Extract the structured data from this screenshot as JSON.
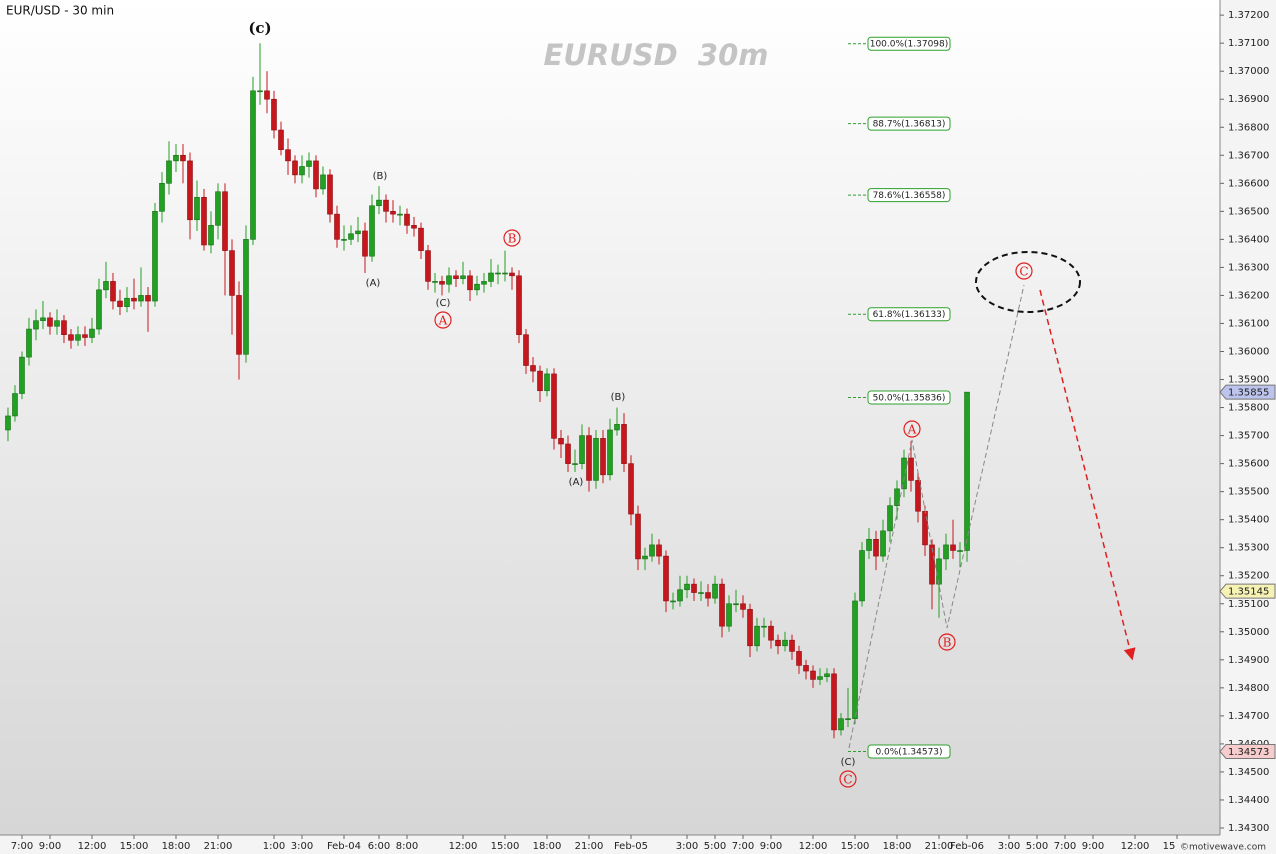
{
  "chart_data": {
    "type": "candlestick",
    "title": "EUR/USD - 30 min",
    "watermark": "EURUSD  30m",
    "credit": "©motivewave.com",
    "xlim": [
      -1.14,
      173.14
    ],
    "ylim": [
      1.34275,
      1.37254
    ],
    "colors": {
      "up": "#22a022",
      "down": "#c8161d"
    },
    "yticks": [
      {
        "value": 1.343,
        "label": "1.34300"
      },
      {
        "value": 1.344,
        "label": "1.34400"
      },
      {
        "value": 1.345,
        "label": "1.34500"
      },
      {
        "value": 1.346,
        "label": "1.34600"
      },
      {
        "value": 1.347,
        "label": "1.34700"
      },
      {
        "value": 1.348,
        "label": "1.34800"
      },
      {
        "value": 1.349,
        "label": "1.34900"
      },
      {
        "value": 1.35,
        "label": "1.35000"
      },
      {
        "value": 1.351,
        "label": "1.35100"
      },
      {
        "value": 1.352,
        "label": "1.35200"
      },
      {
        "value": 1.353,
        "label": "1.35300"
      },
      {
        "value": 1.354,
        "label": "1.35400"
      },
      {
        "value": 1.355,
        "label": "1.35500"
      },
      {
        "value": 1.356,
        "label": "1.35600"
      },
      {
        "value": 1.357,
        "label": "1.35700"
      },
      {
        "value": 1.358,
        "label": "1.35800"
      },
      {
        "value": 1.359,
        "label": "1.35900"
      },
      {
        "value": 1.36,
        "label": "1.36000"
      },
      {
        "value": 1.361,
        "label": "1.36100"
      },
      {
        "value": 1.362,
        "label": "1.36200"
      },
      {
        "value": 1.363,
        "label": "1.36300"
      },
      {
        "value": 1.364,
        "label": "1.36400"
      },
      {
        "value": 1.365,
        "label": "1.36500"
      },
      {
        "value": 1.366,
        "label": "1.36600"
      },
      {
        "value": 1.367,
        "label": "1.36700"
      },
      {
        "value": 1.368,
        "label": "1.36800"
      },
      {
        "value": 1.369,
        "label": "1.36900"
      },
      {
        "value": 1.37,
        "label": "1.37000"
      },
      {
        "value": 1.371,
        "label": "1.37100"
      },
      {
        "value": 1.372,
        "label": "1.37200"
      }
    ],
    "xticks": [
      {
        "value": 2,
        "label": "7:00"
      },
      {
        "value": 6,
        "label": "9:00"
      },
      {
        "value": 12,
        "label": "12:00"
      },
      {
        "value": 18,
        "label": "15:00"
      },
      {
        "value": 24,
        "label": "18:00"
      },
      {
        "value": 30,
        "label": "21:00"
      },
      {
        "value": 38,
        "label": "1:00"
      },
      {
        "value": 42,
        "label": "3:00"
      },
      {
        "value": 48,
        "label": "Feb-04"
      },
      {
        "value": 53,
        "label": "6:00"
      },
      {
        "value": 57,
        "label": "8:00"
      },
      {
        "value": 65,
        "label": "12:00"
      },
      {
        "value": 71,
        "label": "15:00"
      },
      {
        "value": 77,
        "label": "18:00"
      },
      {
        "value": 83,
        "label": "21:00"
      },
      {
        "value": 89,
        "label": "Feb-05"
      },
      {
        "value": 97,
        "label": "3:00"
      },
      {
        "value": 101,
        "label": "5:00"
      },
      {
        "value": 105,
        "label": "7:00"
      },
      {
        "value": 109,
        "label": "9:00"
      },
      {
        "value": 115,
        "label": "12:00"
      },
      {
        "value": 121,
        "label": "15:00"
      },
      {
        "value": 127,
        "label": "18:00"
      },
      {
        "value": 133,
        "label": "21:00"
      },
      {
        "value": 137,
        "label": "Feb-06"
      },
      {
        "value": 143,
        "label": "3:00"
      },
      {
        "value": 147,
        "label": "5:00"
      },
      {
        "value": 151,
        "label": "7:00"
      },
      {
        "value": 155,
        "label": "9:00"
      },
      {
        "value": 161,
        "label": "12:00"
      },
      {
        "value": 167,
        "label": "15:00"
      }
    ],
    "candles": [
      [
        1.3572,
        1.358,
        1.3568,
        1.3577
      ],
      [
        1.3577,
        1.3588,
        1.3575,
        1.3585
      ],
      [
        1.3585,
        1.36,
        1.3583,
        1.3598
      ],
      [
        1.3598,
        1.3612,
        1.3595,
        1.3608
      ],
      [
        1.3608,
        1.3615,
        1.3604,
        1.3611
      ],
      [
        1.3611,
        1.3618,
        1.3608,
        1.3612
      ],
      [
        1.3612,
        1.3614,
        1.3606,
        1.3609
      ],
      [
        1.3609,
        1.3615,
        1.3606,
        1.3611
      ],
      [
        1.3611,
        1.3613,
        1.3603,
        1.3606
      ],
      [
        1.3606,
        1.3608,
        1.3601,
        1.3604
      ],
      [
        1.3604,
        1.3609,
        1.3602,
        1.3606
      ],
      [
        1.3606,
        1.3609,
        1.3602,
        1.3605
      ],
      [
        1.3605,
        1.3612,
        1.3603,
        1.3608
      ],
      [
        1.3608,
        1.3626,
        1.3606,
        1.3622
      ],
      [
        1.3622,
        1.3632,
        1.3619,
        1.3625
      ],
      [
        1.3625,
        1.3628,
        1.3615,
        1.3618
      ],
      [
        1.3618,
        1.3622,
        1.3613,
        1.3616
      ],
      [
        1.3616,
        1.3623,
        1.3614,
        1.3619
      ],
      [
        1.3619,
        1.3626,
        1.3615,
        1.3618
      ],
      [
        1.3618,
        1.363,
        1.3616,
        1.362
      ],
      [
        1.362,
        1.3623,
        1.3607,
        1.3618
      ],
      [
        1.3618,
        1.3653,
        1.3616,
        1.365
      ],
      [
        1.365,
        1.3664,
        1.3646,
        1.366
      ],
      [
        1.366,
        1.3675,
        1.3656,
        1.3668
      ],
      [
        1.3668,
        1.3674,
        1.3664,
        1.367
      ],
      [
        1.367,
        1.3674,
        1.366,
        1.3668
      ],
      [
        1.3668,
        1.3671,
        1.364,
        1.3647
      ],
      [
        1.3647,
        1.3661,
        1.3643,
        1.3655
      ],
      [
        1.3655,
        1.3658,
        1.3636,
        1.3638
      ],
      [
        1.3638,
        1.365,
        1.3635,
        1.3645
      ],
      [
        1.3645,
        1.366,
        1.364,
        1.3657
      ],
      [
        1.3657,
        1.366,
        1.362,
        1.3636
      ],
      [
        1.3636,
        1.364,
        1.3606,
        1.362
      ],
      [
        1.362,
        1.3625,
        1.359,
        1.3599
      ],
      [
        1.3599,
        1.3645,
        1.3596,
        1.364
      ],
      [
        1.364,
        1.3698,
        1.3638,
        1.3693
      ],
      [
        1.3693,
        1.371,
        1.3688,
        1.3693
      ],
      [
        1.3693,
        1.37,
        1.3685,
        1.369
      ],
      [
        1.369,
        1.3693,
        1.3676,
        1.3679
      ],
      [
        1.3679,
        1.3682,
        1.367,
        1.3672
      ],
      [
        1.3672,
        1.3676,
        1.3663,
        1.3668
      ],
      [
        1.3668,
        1.367,
        1.366,
        1.3663
      ],
      [
        1.3663,
        1.367,
        1.366,
        1.3666
      ],
      [
        1.3666,
        1.3671,
        1.3662,
        1.3668
      ],
      [
        1.3668,
        1.367,
        1.3655,
        1.3658
      ],
      [
        1.3658,
        1.3666,
        1.3656,
        1.3663
      ],
      [
        1.3663,
        1.3665,
        1.3646,
        1.3649
      ],
      [
        1.3649,
        1.3652,
        1.3637,
        1.364
      ],
      [
        1.364,
        1.3645,
        1.3636,
        1.364
      ],
      [
        1.364,
        1.3645,
        1.3638,
        1.3642
      ],
      [
        1.3642,
        1.3648,
        1.3639,
        1.3643
      ],
      [
        1.3643,
        1.3646,
        1.3628,
        1.3634
      ],
      [
        1.3634,
        1.3656,
        1.3632,
        1.3652
      ],
      [
        1.3652,
        1.3659,
        1.3649,
        1.3654
      ],
      [
        1.3654,
        1.3656,
        1.3646,
        1.365
      ],
      [
        1.365,
        1.3654,
        1.3646,
        1.3649
      ],
      [
        1.3649,
        1.3652,
        1.3645,
        1.3649
      ],
      [
        1.3649,
        1.3651,
        1.3642,
        1.3645
      ],
      [
        1.3645,
        1.3648,
        1.3641,
        1.3644
      ],
      [
        1.3644,
        1.3646,
        1.3633,
        1.3636
      ],
      [
        1.3636,
        1.3638,
        1.3622,
        1.3625
      ],
      [
        1.3625,
        1.3628,
        1.3621,
        1.3625
      ],
      [
        1.3625,
        1.3627,
        1.362,
        1.3624
      ],
      [
        1.3624,
        1.363,
        1.3621,
        1.3627
      ],
      [
        1.3627,
        1.3629,
        1.3623,
        1.3626
      ],
      [
        1.3626,
        1.3632,
        1.3624,
        1.3627
      ],
      [
        1.3627,
        1.3629,
        1.3618,
        1.3622
      ],
      [
        1.3622,
        1.3627,
        1.362,
        1.3624
      ],
      [
        1.3624,
        1.3628,
        1.3621,
        1.3625
      ],
      [
        1.3625,
        1.3633,
        1.3623,
        1.3628
      ],
      [
        1.3628,
        1.3631,
        1.3624,
        1.3628
      ],
      [
        1.3628,
        1.3636,
        1.3625,
        1.3628
      ],
      [
        1.3628,
        1.363,
        1.3622,
        1.3627
      ],
      [
        1.3627,
        1.3629,
        1.3603,
        1.3606
      ],
      [
        1.3606,
        1.3608,
        1.3592,
        1.3595
      ],
      [
        1.3595,
        1.3598,
        1.3589,
        1.3593
      ],
      [
        1.3593,
        1.3595,
        1.3582,
        1.3586
      ],
      [
        1.3586,
        1.3594,
        1.3584,
        1.3592
      ],
      [
        1.3592,
        1.3594,
        1.3565,
        1.3569
      ],
      [
        1.3569,
        1.3572,
        1.3562,
        1.3567
      ],
      [
        1.3567,
        1.357,
        1.3557,
        1.356
      ],
      [
        1.356,
        1.3565,
        1.3557,
        1.356
      ],
      [
        1.356,
        1.3574,
        1.3558,
        1.357
      ],
      [
        1.357,
        1.3573,
        1.355,
        1.3554
      ],
      [
        1.3554,
        1.3572,
        1.3551,
        1.3569
      ],
      [
        1.3569,
        1.3572,
        1.3553,
        1.3556
      ],
      [
        1.3556,
        1.3576,
        1.3554,
        1.3572
      ],
      [
        1.3572,
        1.358,
        1.357,
        1.3574
      ],
      [
        1.3574,
        1.3578,
        1.3557,
        1.356
      ],
      [
        1.356,
        1.3563,
        1.3538,
        1.3542
      ],
      [
        1.3542,
        1.3545,
        1.3522,
        1.3526
      ],
      [
        1.3526,
        1.353,
        1.3522,
        1.3527
      ],
      [
        1.3527,
        1.3535,
        1.3525,
        1.3531
      ],
      [
        1.3531,
        1.3533,
        1.3524,
        1.3527
      ],
      [
        1.3527,
        1.3529,
        1.3507,
        1.3511
      ],
      [
        1.3511,
        1.3514,
        1.3508,
        1.3511
      ],
      [
        1.3511,
        1.352,
        1.3509,
        1.3515
      ],
      [
        1.3515,
        1.352,
        1.3512,
        1.3517
      ],
      [
        1.3517,
        1.3519,
        1.3511,
        1.3514
      ],
      [
        1.3514,
        1.3518,
        1.3511,
        1.3514
      ],
      [
        1.3514,
        1.3517,
        1.3509,
        1.3512
      ],
      [
        1.3512,
        1.352,
        1.351,
        1.3517
      ],
      [
        1.3517,
        1.3519,
        1.3498,
        1.3502
      ],
      [
        1.3502,
        1.3513,
        1.35,
        1.351
      ],
      [
        1.351,
        1.3515,
        1.3507,
        1.351
      ],
      [
        1.351,
        1.3513,
        1.3505,
        1.3508
      ],
      [
        1.3508,
        1.351,
        1.3491,
        1.3495
      ],
      [
        1.3495,
        1.3505,
        1.3493,
        1.3502
      ],
      [
        1.3502,
        1.3505,
        1.3498,
        1.3502
      ],
      [
        1.3502,
        1.3504,
        1.3494,
        1.3497
      ],
      [
        1.3497,
        1.3499,
        1.3492,
        1.3495
      ],
      [
        1.3495,
        1.35,
        1.3493,
        1.3497
      ],
      [
        1.3497,
        1.3499,
        1.349,
        1.3493
      ],
      [
        1.3493,
        1.3495,
        1.3485,
        1.3488
      ],
      [
        1.3488,
        1.349,
        1.3483,
        1.3486
      ],
      [
        1.3486,
        1.3488,
        1.348,
        1.3483
      ],
      [
        1.3483,
        1.3487,
        1.3481,
        1.3484
      ],
      [
        1.3484,
        1.3487,
        1.3482,
        1.3485
      ],
      [
        1.3485,
        1.3487,
        1.3462,
        1.3465
      ],
      [
        1.3465,
        1.3471,
        1.3463,
        1.3469
      ],
      [
        1.3469,
        1.348,
        1.3466,
        1.3469
      ],
      [
        1.3469,
        1.3514,
        1.3467,
        1.3511
      ],
      [
        1.3511,
        1.3532,
        1.3509,
        1.3529
      ],
      [
        1.3529,
        1.3537,
        1.3526,
        1.3533
      ],
      [
        1.3533,
        1.3536,
        1.3522,
        1.3527
      ],
      [
        1.3527,
        1.354,
        1.3525,
        1.3536
      ],
      [
        1.3536,
        1.3548,
        1.3532,
        1.3545
      ],
      [
        1.3545,
        1.3554,
        1.354,
        1.3551
      ],
      [
        1.3551,
        1.3565,
        1.3548,
        1.3562
      ],
      [
        1.3562,
        1.3568,
        1.355,
        1.3554
      ],
      [
        1.3554,
        1.3557,
        1.3539,
        1.3543
      ],
      [
        1.3543,
        1.3545,
        1.3527,
        1.3531
      ],
      [
        1.3531,
        1.3533,
        1.3508,
        1.3517
      ],
      [
        1.3517,
        1.353,
        1.3505,
        1.3526
      ],
      [
        1.3526,
        1.3535,
        1.3522,
        1.3531
      ],
      [
        1.3531,
        1.354,
        1.3526,
        1.3529
      ],
      [
        1.3529,
        1.3532,
        1.3523,
        1.3529
      ],
      [
        1.3529,
        1.35855,
        1.3525,
        1.35855
      ]
    ],
    "price_markers": [
      {
        "value": 1.35855,
        "color": "#bcc4ee"
      },
      {
        "value": 1.35145,
        "color": "#f6f2b4"
      },
      {
        "value": 1.34573,
        "color": "#f6cccc"
      }
    ],
    "fib_levels": [
      {
        "value": 1.37098,
        "label": "100.0%(1.37098)"
      },
      {
        "value": 1.36813,
        "label": "88.7%(1.36813)"
      },
      {
        "value": 1.36558,
        "label": "78.6%(1.36558)"
      },
      {
        "value": 1.36133,
        "label": "61.8%(1.36133)"
      },
      {
        "value": 1.35836,
        "label": "50.0%(1.35836)"
      },
      {
        "value": 1.34573,
        "label": "0.0%(1.34573)"
      }
    ],
    "wave_labels": [
      {
        "text": "(c)"
      },
      {
        "text": "(B)"
      },
      {
        "text": "(A)"
      },
      {
        "text": "(C)"
      },
      {
        "text": "A",
        "circled": true
      },
      {
        "text": "B",
        "circled": true
      },
      {
        "text": "(B)"
      },
      {
        "text": "(A)"
      },
      {
        "text": "(C)"
      },
      {
        "text": "C",
        "circled": true
      },
      {
        "text": "A",
        "circled": true
      },
      {
        "text": "B",
        "circled": true
      },
      {
        "text": "C",
        "circled": true
      }
    ]
  }
}
